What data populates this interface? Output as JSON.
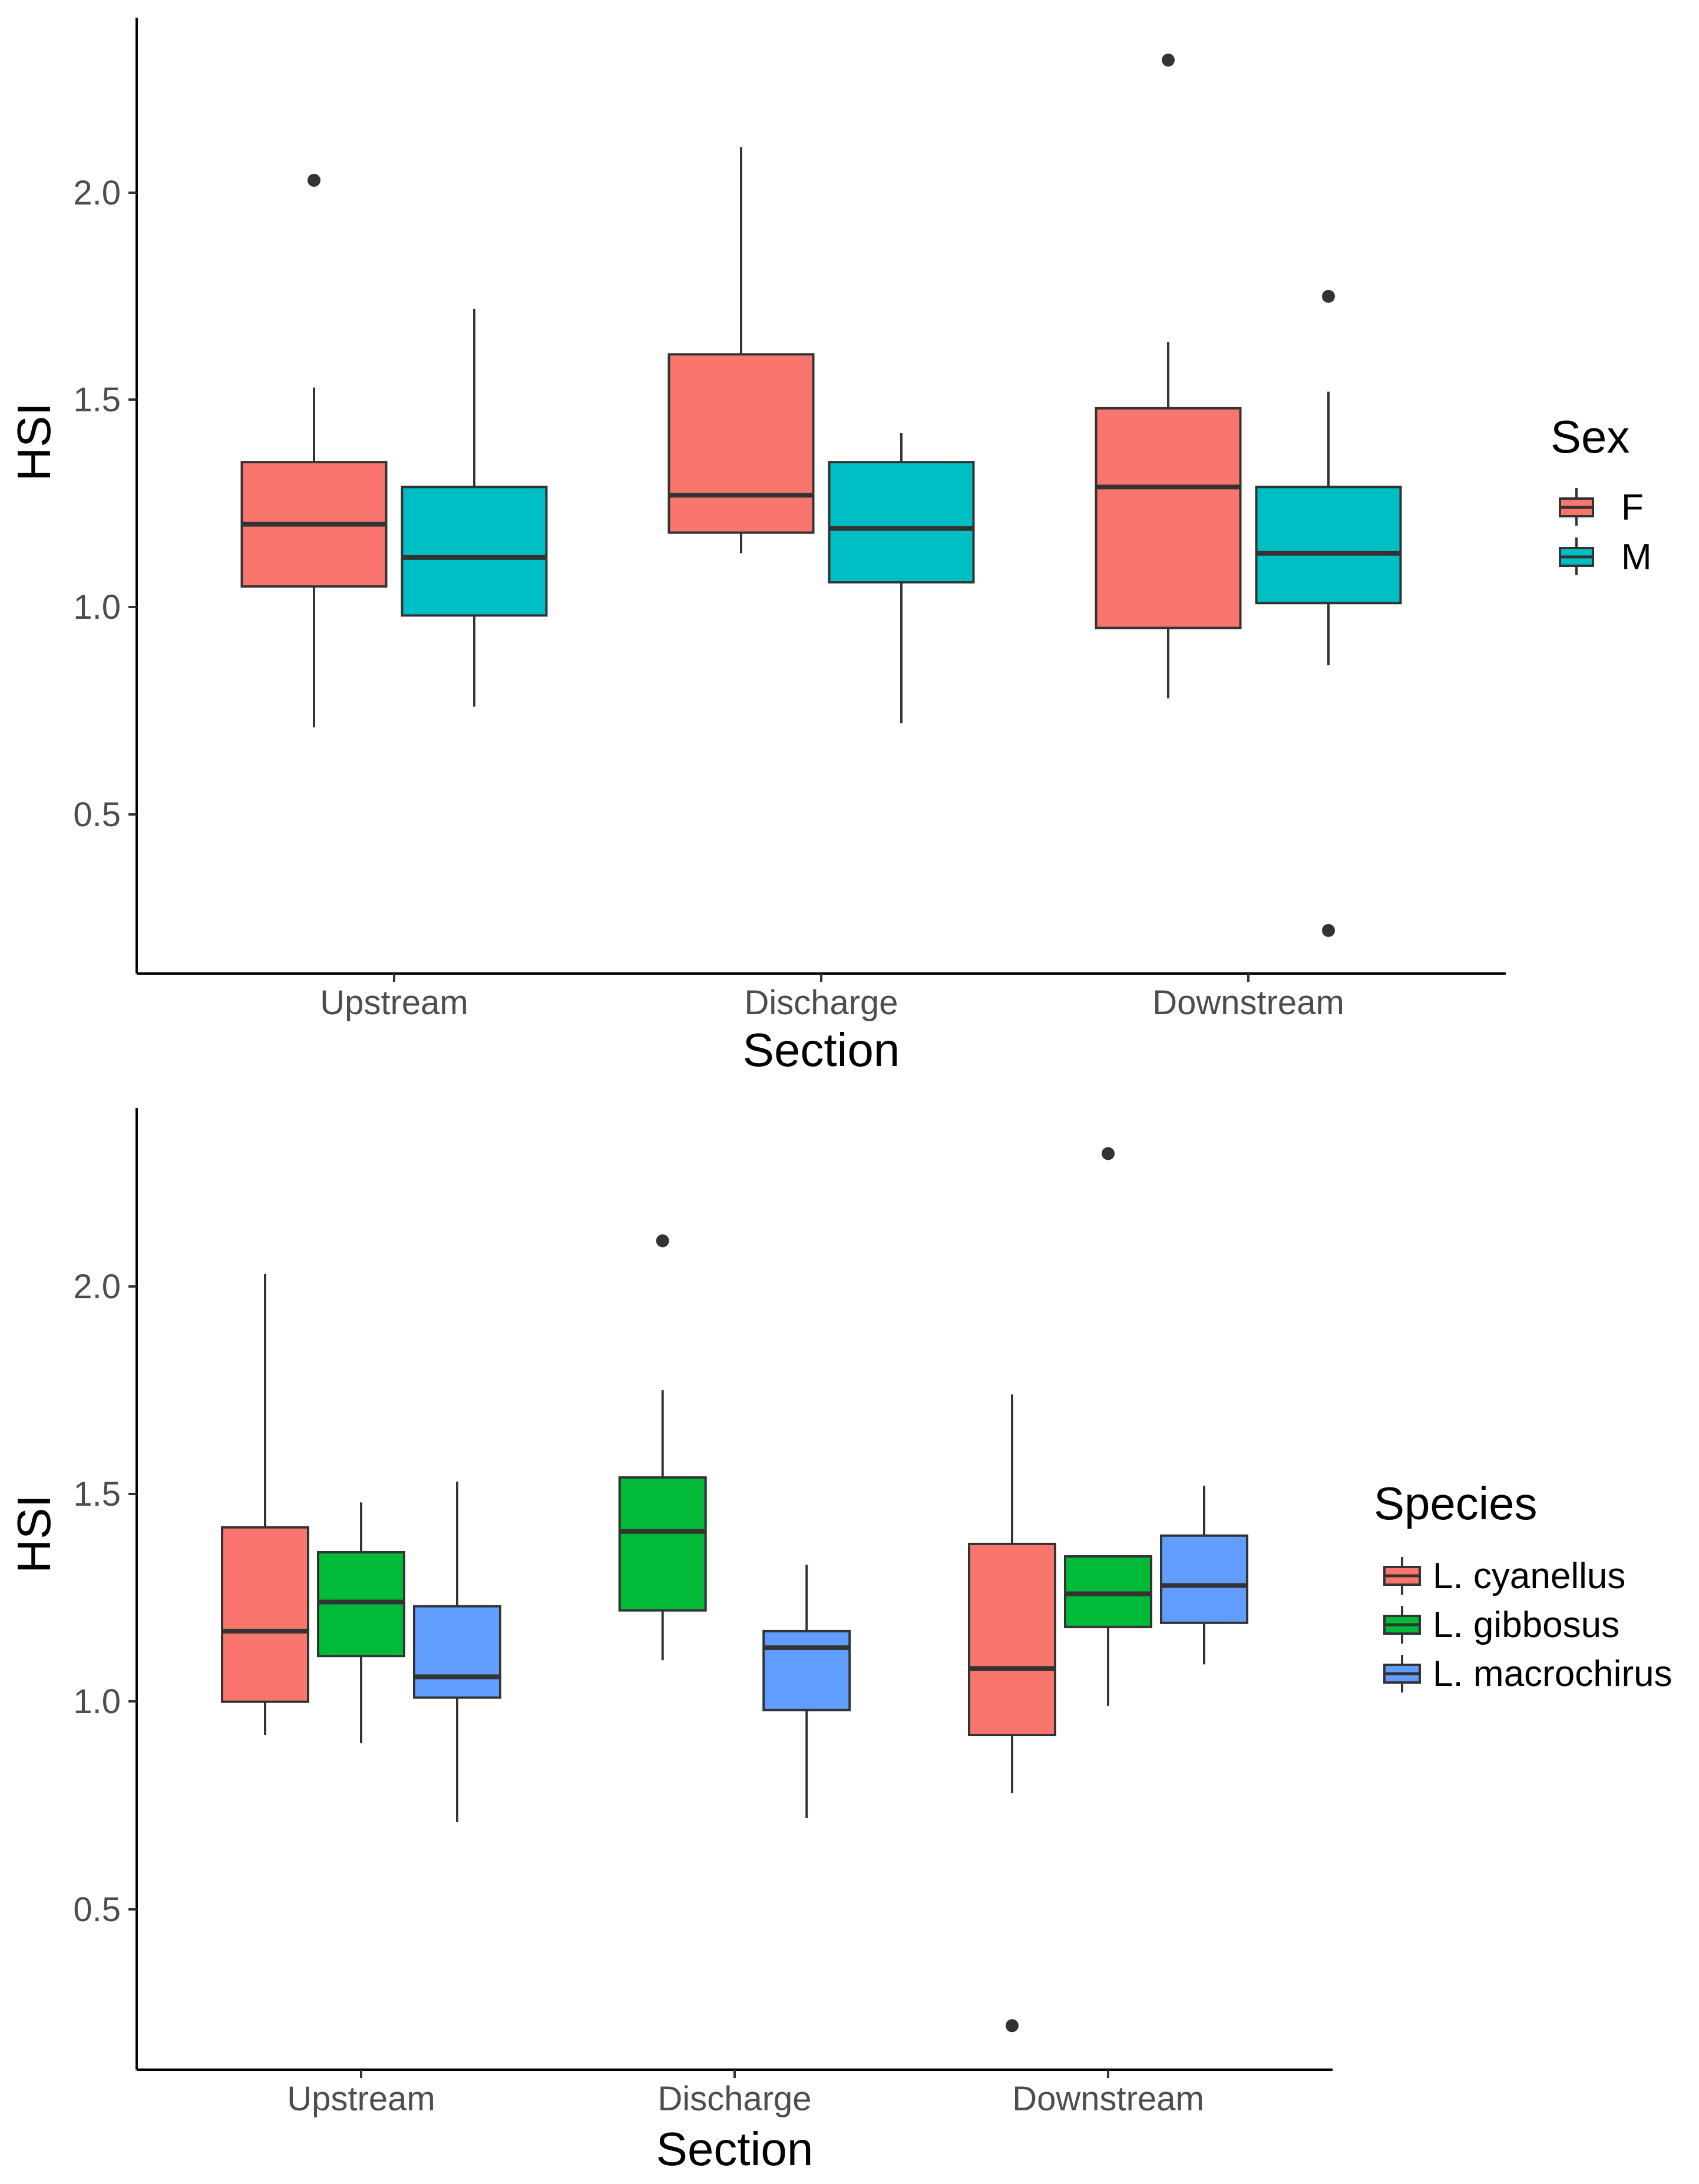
{
  "chart_data": [
    {
      "type": "boxplot",
      "xlabel": "Section",
      "ylabel": "HSI",
      "categories": [
        "Upstream",
        "Discharge",
        "Downstream"
      ],
      "yticks": [
        "0.5",
        "1.0",
        "1.5",
        "2.0"
      ],
      "ylim": [
        0.12,
        2.43
      ],
      "legend_title": "Sex",
      "legend_position": "right",
      "series": [
        {
          "name": "F",
          "color": "#F8766D",
          "boxes": [
            {
              "category": "Upstream",
              "lower_whisker": 0.71,
              "q1": 1.05,
              "median": 1.2,
              "q3": 1.35,
              "upper_whisker": 1.53,
              "outliers": [
                2.03
              ]
            },
            {
              "category": "Discharge",
              "lower_whisker": 1.13,
              "q1": 1.18,
              "median": 1.27,
              "q3": 1.61,
              "upper_whisker": 2.11,
              "outliers": []
            },
            {
              "category": "Downstream",
              "lower_whisker": 0.78,
              "q1": 0.95,
              "median": 1.29,
              "q3": 1.48,
              "upper_whisker": 1.64,
              "outliers": [
                2.32
              ]
            }
          ]
        },
        {
          "name": "M",
          "color": "#00BFC4",
          "boxes": [
            {
              "category": "Upstream",
              "lower_whisker": 0.76,
              "q1": 0.98,
              "median": 1.12,
              "q3": 1.29,
              "upper_whisker": 1.72,
              "outliers": []
            },
            {
              "category": "Discharge",
              "lower_whisker": 0.72,
              "q1": 1.06,
              "median": 1.19,
              "q3": 1.35,
              "upper_whisker": 1.42,
              "outliers": []
            },
            {
              "category": "Downstream",
              "lower_whisker": 0.86,
              "q1": 1.01,
              "median": 1.13,
              "q3": 1.29,
              "upper_whisker": 1.52,
              "outliers": [
                1.75,
                0.22
              ]
            }
          ]
        }
      ]
    },
    {
      "type": "boxplot",
      "xlabel": "Section",
      "ylabel": "HSI",
      "categories": [
        "Upstream",
        "Discharge",
        "Downstream"
      ],
      "yticks": [
        "0.5",
        "1.0",
        "1.5",
        "2.0"
      ],
      "ylim": [
        0.12,
        2.43
      ],
      "legend_title": "Species",
      "legend_position": "right",
      "series": [
        {
          "name": "L. cyanellus",
          "color": "#F8766D",
          "boxes": [
            {
              "category": "Upstream",
              "lower_whisker": 0.92,
              "q1": 1.0,
              "median": 1.17,
              "q3": 1.42,
              "upper_whisker": 2.03,
              "outliers": []
            },
            {
              "category": "Downstream",
              "lower_whisker": 0.78,
              "q1": 0.92,
              "median": 1.08,
              "q3": 1.38,
              "upper_whisker": 1.74,
              "outliers": [
                0.22
              ]
            }
          ]
        },
        {
          "name": "L. gibbosus",
          "color": "#00BA38",
          "boxes": [
            {
              "category": "Upstream",
              "lower_whisker": 0.9,
              "q1": 1.11,
              "median": 1.24,
              "q3": 1.36,
              "upper_whisker": 1.48,
              "outliers": []
            },
            {
              "category": "Discharge",
              "lower_whisker": 1.1,
              "q1": 1.22,
              "median": 1.41,
              "q3": 1.54,
              "upper_whisker": 1.75,
              "outliers": [
                2.11
              ]
            },
            {
              "category": "Downstream",
              "lower_whisker": 0.99,
              "q1": 1.18,
              "median": 1.26,
              "q3": 1.35,
              "upper_whisker": 1.35,
              "outliers": [
                2.32
              ]
            }
          ]
        },
        {
          "name": "L. macrochirus",
          "color": "#619CFF",
          "boxes": [
            {
              "category": "Upstream",
              "lower_whisker": 0.71,
              "q1": 1.01,
              "median": 1.06,
              "q3": 1.23,
              "upper_whisker": 1.53,
              "outliers": []
            },
            {
              "category": "Discharge",
              "lower_whisker": 0.72,
              "q1": 0.98,
              "median": 1.13,
              "q3": 1.17,
              "upper_whisker": 1.33,
              "outliers": []
            },
            {
              "category": "Downstream",
              "lower_whisker": 1.09,
              "q1": 1.19,
              "median": 1.28,
              "q3": 1.4,
              "upper_whisker": 1.52,
              "outliers": []
            }
          ]
        }
      ]
    }
  ]
}
